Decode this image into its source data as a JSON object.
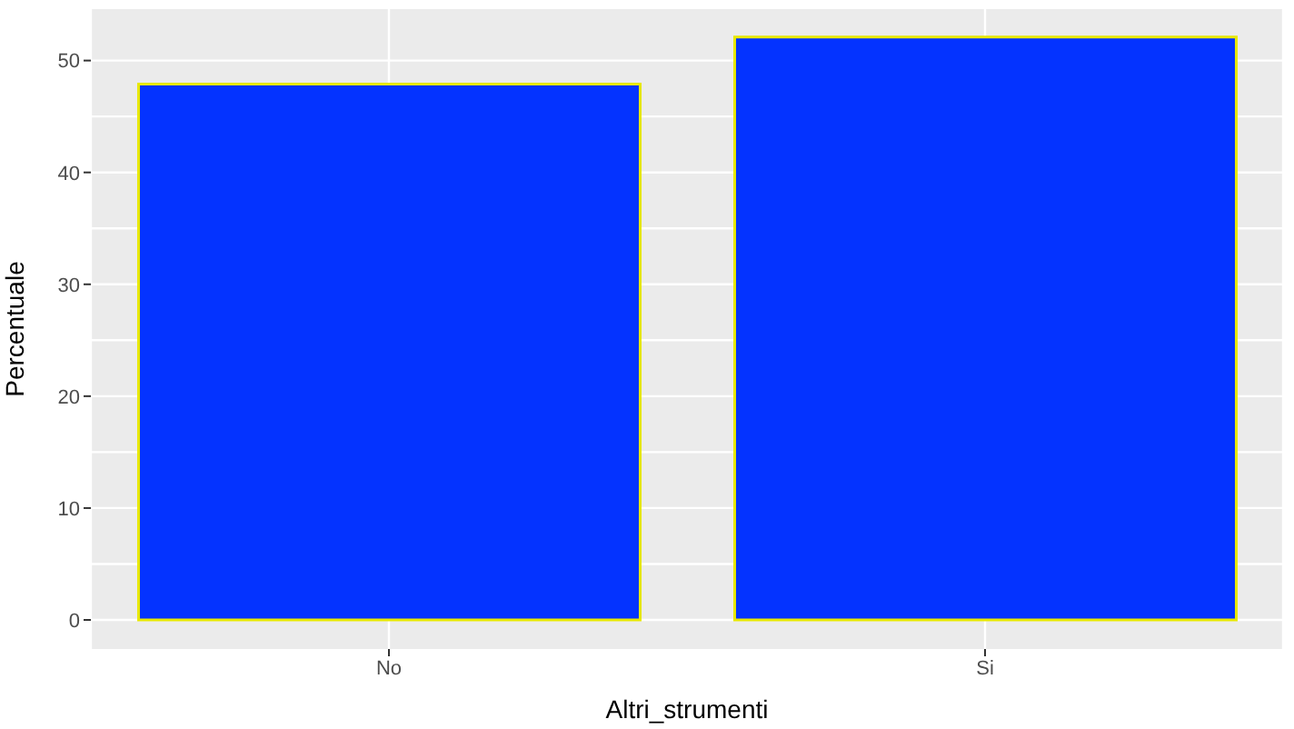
{
  "chart_data": {
    "type": "bar",
    "xlabel": "Altri_strumenti",
    "ylabel": "Percentuale",
    "categories": [
      "No",
      "Si"
    ],
    "values": [
      47.9,
      52.1
    ],
    "color": "#0433ff",
    "ylim": [
      -2.6,
      54.6
    ],
    "yticks": [
      0,
      10,
      20,
      30,
      40,
      50
    ],
    "grid": true
  }
}
